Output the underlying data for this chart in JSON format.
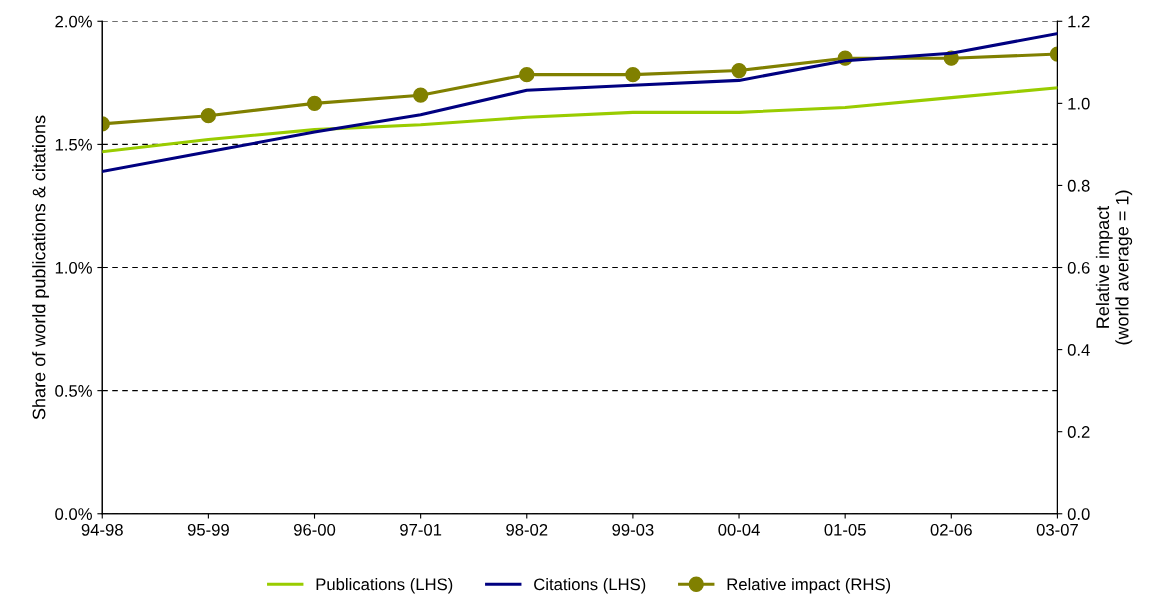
{
  "chart_data": {
    "type": "line",
    "categories": [
      "94-98",
      "95-99",
      "96-00",
      "97-01",
      "98-02",
      "99-03",
      "00-04",
      "01-05",
      "02-06",
      "03-07"
    ],
    "series": [
      {
        "name": "Publications (LHS)",
        "color": "#99cc00",
        "marker": "none",
        "values": [
          1.47,
          1.52,
          1.56,
          1.58,
          1.61,
          1.63,
          1.63,
          1.65,
          1.69,
          1.73
        ]
      },
      {
        "name": "Citations (LHS)",
        "color": "#000080",
        "marker": "none",
        "values": [
          1.39,
          1.47,
          1.55,
          1.62,
          1.72,
          1.74,
          1.76,
          1.84,
          1.87,
          1.95
        ]
      },
      {
        "name": "Relative impact (RHS)",
        "color": "#808000",
        "marker": "circle",
        "axis": "y2",
        "values": [
          0.95,
          0.97,
          1.0,
          1.02,
          1.07,
          1.07,
          1.08,
          1.11,
          1.11,
          1.12
        ]
      }
    ],
    "ylabel": "Share of world publications & citations",
    "y2label": "Relative impact\n(world average = 1)",
    "ylim": [
      0,
      2.0
    ],
    "yticks": [
      {
        "value": 0,
        "label": "0.0%"
      },
      {
        "value": 0.5,
        "label": "0.5%"
      },
      {
        "value": 1.0,
        "label": "1.0%"
      },
      {
        "value": 1.5,
        "label": "1.5%"
      },
      {
        "value": 2.0,
        "label": "2.0%"
      }
    ],
    "y2lim": [
      0,
      1.2
    ],
    "y2ticks": [
      {
        "value": 0,
        "label": "0.0"
      },
      {
        "value": 0.2,
        "label": "0.2"
      },
      {
        "value": 0.4,
        "label": "0.4"
      },
      {
        "value": 0.6,
        "label": "0.6"
      },
      {
        "value": 0.8,
        "label": "0.8"
      },
      {
        "value": 1.0,
        "label": "1.0"
      },
      {
        "value": 1.2,
        "label": "1.2"
      }
    ],
    "grid": "y",
    "legend": "bottom",
    "line_style": "solid"
  }
}
